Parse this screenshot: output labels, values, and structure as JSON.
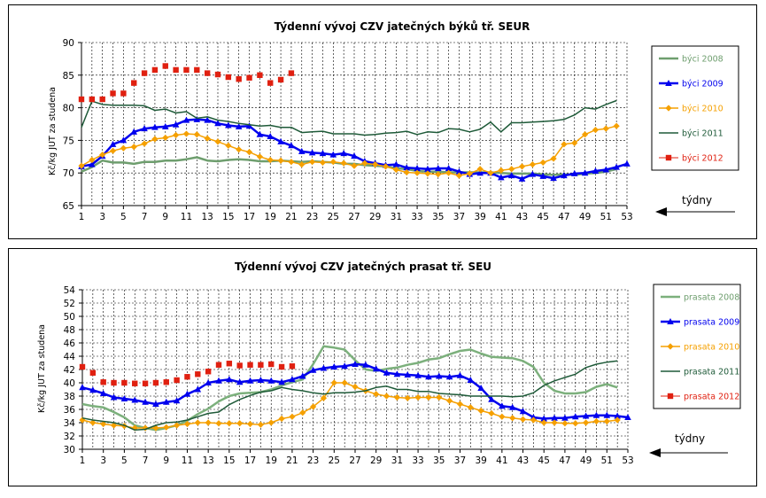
{
  "chart_data": [
    {
      "type": "line",
      "title": "Týdenní vývoj CZV jatečných býků tř. SEUR",
      "ylabel": "Kč/kg JUT za studena",
      "xlabel": "",
      "annotation": "týdny",
      "ylim": [
        65,
        90
      ],
      "yticks": [
        65,
        70,
        75,
        80,
        85,
        90
      ],
      "xticks": [
        1,
        3,
        5,
        7,
        9,
        11,
        13,
        15,
        17,
        19,
        21,
        23,
        25,
        27,
        29,
        31,
        33,
        35,
        37,
        39,
        41,
        43,
        45,
        47,
        49,
        51,
        53
      ],
      "grid": true,
      "legend_position": "right",
      "series": [
        {
          "name": "býci 2008",
          "color": "#6e9e6e",
          "label_color": "#6e9e6e",
          "width": 2.5,
          "marker": "none",
          "x": [
            1,
            2,
            3,
            4,
            5,
            6,
            7,
            8,
            9,
            10,
            11,
            12,
            13,
            14,
            15,
            16,
            17,
            18,
            19,
            20,
            21,
            22,
            23,
            24,
            25,
            26,
            27,
            28,
            29,
            30,
            31,
            32,
            33,
            34,
            35,
            36,
            37,
            38,
            39,
            40,
            41,
            42,
            43,
            44,
            45,
            46,
            47,
            48,
            49,
            50,
            51,
            52
          ],
          "values": [
            70.2,
            70.9,
            71.9,
            71.6,
            71.6,
            71.4,
            71.7,
            71.7,
            71.9,
            71.9,
            72.1,
            72.4,
            71.9,
            71.8,
            72.0,
            72.1,
            72.0,
            71.8,
            71.8,
            71.9,
            71.8,
            71.7,
            71.8,
            71.7,
            71.6,
            71.4,
            71.4,
            71.2,
            71.1,
            71.0,
            70.7,
            70.6,
            70.3,
            70.2,
            70.2,
            70.1,
            70.1,
            70.1,
            70.1,
            70.1,
            70.0,
            69.9,
            69.9,
            69.9,
            69.8,
            69.7,
            69.8,
            69.7,
            69.9,
            70.0,
            70.2,
            70.6
          ]
        },
        {
          "name": "býci 2009",
          "color": "#0000ee",
          "label_color": "#0000ee",
          "width": 2.5,
          "marker": "triangle",
          "x": [
            1,
            2,
            3,
            4,
            5,
            6,
            7,
            8,
            9,
            10,
            11,
            12,
            13,
            14,
            15,
            16,
            17,
            18,
            19,
            20,
            21,
            22,
            23,
            24,
            25,
            26,
            27,
            28,
            29,
            30,
            31,
            32,
            33,
            34,
            35,
            36,
            37,
            38,
            39,
            40,
            41,
            42,
            43,
            44,
            45,
            46,
            47,
            48,
            49,
            50,
            51,
            52,
            53
          ],
          "values": [
            71.0,
            71.3,
            72.6,
            74.4,
            75.0,
            76.3,
            76.8,
            77.0,
            77.1,
            77.4,
            78.1,
            78.2,
            78.1,
            77.6,
            77.3,
            77.1,
            77.2,
            75.9,
            75.6,
            74.8,
            74.2,
            73.3,
            73.1,
            73.0,
            72.8,
            73.0,
            72.6,
            71.8,
            71.5,
            71.2,
            71.3,
            70.8,
            70.7,
            70.6,
            70.7,
            70.7,
            70.2,
            69.8,
            70.0,
            70.0,
            69.3,
            69.6,
            69.1,
            69.8,
            69.5,
            69.2,
            69.6,
            69.9,
            70.0,
            70.3,
            70.5,
            70.9,
            71.4
          ]
        },
        {
          "name": "býci 2010",
          "color": "#f5a000",
          "label_color": "#f5a000",
          "width": 1.5,
          "marker": "diamond",
          "x": [
            1,
            2,
            3,
            4,
            5,
            6,
            7,
            8,
            9,
            10,
            11,
            12,
            13,
            14,
            15,
            16,
            17,
            18,
            19,
            20,
            21,
            22,
            23,
            24,
            25,
            26,
            27,
            28,
            29,
            30,
            31,
            32,
            33,
            34,
            35,
            36,
            37,
            38,
            39,
            40,
            41,
            42,
            43,
            44,
            45,
            46,
            47,
            48,
            49,
            50,
            51,
            52
          ],
          "values": [
            71.1,
            72.0,
            72.8,
            73.4,
            73.8,
            74.0,
            74.5,
            75.2,
            75.4,
            75.8,
            76.0,
            75.9,
            75.3,
            74.8,
            74.2,
            73.6,
            73.2,
            72.5,
            72.0,
            71.9,
            71.7,
            71.3,
            71.7,
            71.6,
            71.7,
            71.5,
            71.1,
            71.5,
            71.3,
            71.0,
            70.5,
            70.1,
            70.0,
            69.9,
            69.8,
            70.0,
            69.6,
            69.9,
            70.6,
            70.0,
            70.4,
            70.6,
            71.0,
            71.3,
            71.6,
            72.2,
            74.4,
            74.6,
            75.9,
            76.6,
            76.8,
            77.2
          ]
        },
        {
          "name": "býci 2011",
          "color": "#1e5a38",
          "label_color": "#1e5a38",
          "width": 1.5,
          "marker": "none",
          "x": [
            1,
            2,
            3,
            4,
            5,
            6,
            7,
            8,
            9,
            10,
            11,
            12,
            13,
            14,
            15,
            16,
            17,
            18,
            19,
            20,
            21,
            22,
            23,
            24,
            25,
            26,
            27,
            28,
            29,
            30,
            31,
            32,
            33,
            34,
            35,
            36,
            37,
            38,
            39,
            40,
            41,
            42,
            43,
            44,
            45,
            46,
            47,
            48,
            49,
            50,
            51,
            52
          ],
          "values": [
            77.0,
            81.0,
            80.5,
            80.4,
            80.4,
            80.4,
            80.3,
            79.6,
            79.8,
            79.2,
            79.4,
            78.4,
            78.6,
            78.1,
            77.9,
            77.6,
            77.4,
            77.2,
            77.3,
            77.0,
            77.0,
            76.2,
            76.3,
            76.4,
            76.0,
            76.0,
            76.0,
            75.8,
            75.9,
            76.1,
            76.2,
            76.4,
            75.9,
            76.3,
            76.2,
            76.8,
            76.7,
            76.3,
            76.7,
            77.8,
            76.3,
            77.7,
            77.7,
            77.8,
            77.9,
            78.0,
            78.2,
            78.9,
            80.0,
            79.8,
            80.5,
            81.1
          ]
        },
        {
          "name": "býci 2012",
          "color": "#e02010",
          "label_color": "#e02010",
          "width": 1.5,
          "marker": "x",
          "x": [
            1,
            2,
            3,
            4,
            5,
            6,
            7,
            8,
            9,
            10,
            11,
            12,
            13,
            14,
            15,
            16,
            17,
            18,
            19,
            20,
            21
          ],
          "values": [
            81.3,
            81.3,
            81.3,
            82.2,
            82.2,
            83.8,
            85.3,
            85.8,
            86.4,
            85.8,
            85.8,
            85.8,
            85.3,
            85.1,
            84.7,
            84.4,
            84.6,
            85.0,
            83.8,
            84.3,
            85.3
          ]
        }
      ]
    },
    {
      "type": "line",
      "title": "Týdenní vývoj CZV jatečných prasat tř. SEU",
      "ylabel": "Kč/kg JUT za studena",
      "xlabel": "",
      "annotation": "týdny",
      "ylim": [
        30,
        54
      ],
      "yticks": [
        30,
        32,
        34,
        36,
        38,
        40,
        42,
        44,
        46,
        48,
        50,
        52,
        54
      ],
      "xticks": [
        1,
        3,
        5,
        7,
        9,
        11,
        13,
        15,
        17,
        19,
        21,
        23,
        25,
        27,
        29,
        31,
        33,
        35,
        37,
        39,
        41,
        43,
        45,
        47,
        49,
        51,
        53
      ],
      "grid": true,
      "legend_position": "right",
      "series": [
        {
          "name": "prasata 2008",
          "color": "#7cb07c",
          "label_color": "#6e9e6e",
          "width": 2.5,
          "marker": "none",
          "x": [
            1,
            2,
            3,
            4,
            5,
            6,
            7,
            8,
            9,
            10,
            11,
            12,
            13,
            14,
            15,
            16,
            17,
            18,
            19,
            20,
            21,
            22,
            23,
            24,
            25,
            26,
            27,
            28,
            29,
            30,
            31,
            32,
            33,
            34,
            35,
            36,
            37,
            38,
            39,
            40,
            41,
            42,
            43,
            44,
            45,
            46,
            47,
            48,
            49,
            50,
            51,
            52
          ],
          "values": [
            36.8,
            36.5,
            36.3,
            35.6,
            34.8,
            33.6,
            33.2,
            32.9,
            33.2,
            33.6,
            34.3,
            35.3,
            36.1,
            37.2,
            38.0,
            38.4,
            38.5,
            38.6,
            39.0,
            39.6,
            40.1,
            40.5,
            42.8,
            45.5,
            45.3,
            45.0,
            43.4,
            42.0,
            41.8,
            42.1,
            42.3,
            42.7,
            43.0,
            43.5,
            43.7,
            44.3,
            44.8,
            45.0,
            44.4,
            43.9,
            43.8,
            43.7,
            43.3,
            42.4,
            40.0,
            38.8,
            38.4,
            38.4,
            38.6,
            39.4,
            39.8,
            39.3
          ]
        },
        {
          "name": "prasata 2009",
          "color": "#0000ee",
          "label_color": "#0000ee",
          "width": 2.5,
          "marker": "triangle",
          "x": [
            1,
            2,
            3,
            4,
            5,
            6,
            7,
            8,
            9,
            10,
            11,
            12,
            13,
            14,
            15,
            16,
            17,
            18,
            19,
            20,
            21,
            22,
            23,
            24,
            25,
            26,
            27,
            28,
            29,
            30,
            31,
            32,
            33,
            34,
            35,
            36,
            37,
            38,
            39,
            40,
            41,
            42,
            43,
            44,
            45,
            46,
            47,
            48,
            49,
            50,
            51,
            52,
            53
          ],
          "values": [
            39.3,
            38.9,
            38.4,
            37.8,
            37.6,
            37.4,
            37.1,
            36.8,
            37.1,
            37.3,
            38.3,
            39.0,
            40.0,
            40.3,
            40.5,
            40.1,
            40.3,
            40.4,
            40.3,
            40.1,
            40.5,
            41.0,
            41.9,
            42.2,
            42.4,
            42.5,
            42.8,
            42.7,
            42.1,
            41.5,
            41.3,
            41.2,
            41.1,
            40.9,
            41.0,
            40.9,
            41.1,
            40.4,
            39.2,
            37.5,
            36.5,
            36.3,
            35.7,
            34.8,
            34.6,
            34.7,
            34.7,
            34.9,
            35.0,
            35.1,
            35.1,
            35.0,
            34.8
          ]
        },
        {
          "name": "prasata 2010",
          "color": "#f5a000",
          "label_color": "#f5a000",
          "width": 1.5,
          "marker": "diamond",
          "x": [
            1,
            2,
            3,
            4,
            5,
            6,
            7,
            8,
            9,
            10,
            11,
            12,
            13,
            14,
            15,
            16,
            17,
            18,
            19,
            20,
            21,
            22,
            23,
            24,
            25,
            26,
            27,
            28,
            29,
            30,
            31,
            32,
            33,
            34,
            35,
            36,
            37,
            38,
            39,
            40,
            41,
            42,
            43,
            44,
            45,
            46,
            47,
            48,
            49,
            50,
            51,
            52
          ],
          "values": [
            34.4,
            34.0,
            33.8,
            33.6,
            33.5,
            33.2,
            33.2,
            33.2,
            33.3,
            33.6,
            33.8,
            34.0,
            34.0,
            33.9,
            33.9,
            33.9,
            33.8,
            33.7,
            34.0,
            34.6,
            34.9,
            35.5,
            36.4,
            37.7,
            40.0,
            40.0,
            39.4,
            38.8,
            38.3,
            38.0,
            37.8,
            37.7,
            37.8,
            37.8,
            37.8,
            37.3,
            36.8,
            36.3,
            35.8,
            35.4,
            34.9,
            34.7,
            34.5,
            34.4,
            34.0,
            34.0,
            33.9,
            33.9,
            34.0,
            34.2,
            34.2,
            34.4
          ]
        },
        {
          "name": "prasata 2011",
          "color": "#1e5a38",
          "label_color": "#1e5a38",
          "width": 1.5,
          "marker": "none",
          "x": [
            1,
            2,
            3,
            4,
            5,
            6,
            7,
            8,
            9,
            10,
            11,
            12,
            13,
            14,
            15,
            16,
            17,
            18,
            19,
            20,
            21,
            22,
            23,
            24,
            25,
            26,
            27,
            28,
            29,
            30,
            31,
            32,
            33,
            34,
            35,
            36,
            37,
            38,
            39,
            40,
            41,
            42,
            43,
            44,
            45,
            46,
            47,
            48,
            49,
            50,
            51,
            52
          ],
          "values": [
            34.7,
            34.4,
            34.2,
            34.0,
            33.6,
            32.9,
            33.0,
            33.6,
            34.0,
            34.1,
            34.4,
            34.9,
            35.4,
            35.6,
            36.7,
            37.5,
            38.1,
            38.6,
            38.8,
            39.3,
            39.0,
            38.8,
            38.5,
            38.3,
            38.5,
            38.5,
            38.6,
            38.8,
            39.3,
            39.5,
            39.0,
            39.0,
            38.7,
            38.7,
            38.4,
            38.3,
            38.2,
            38.0,
            38.0,
            38.0,
            38.0,
            37.9,
            38.0,
            38.5,
            39.6,
            40.3,
            40.8,
            41.3,
            42.3,
            42.8,
            43.1,
            43.3
          ]
        },
        {
          "name": "prasata 2012",
          "color": "#e02010",
          "label_color": "#e02010",
          "width": 1.5,
          "marker": "x",
          "x": [
            1,
            2,
            3,
            4,
            5,
            6,
            7,
            8,
            9,
            10,
            11,
            12,
            13,
            14,
            15,
            16,
            17,
            18,
            19,
            20,
            21
          ],
          "values": [
            42.4,
            41.5,
            40.1,
            40.0,
            40.0,
            39.9,
            39.9,
            40.0,
            40.1,
            40.4,
            40.9,
            41.3,
            41.7,
            42.7,
            42.9,
            42.6,
            42.7,
            42.7,
            42.8,
            42.4,
            42.5
          ]
        }
      ]
    }
  ]
}
